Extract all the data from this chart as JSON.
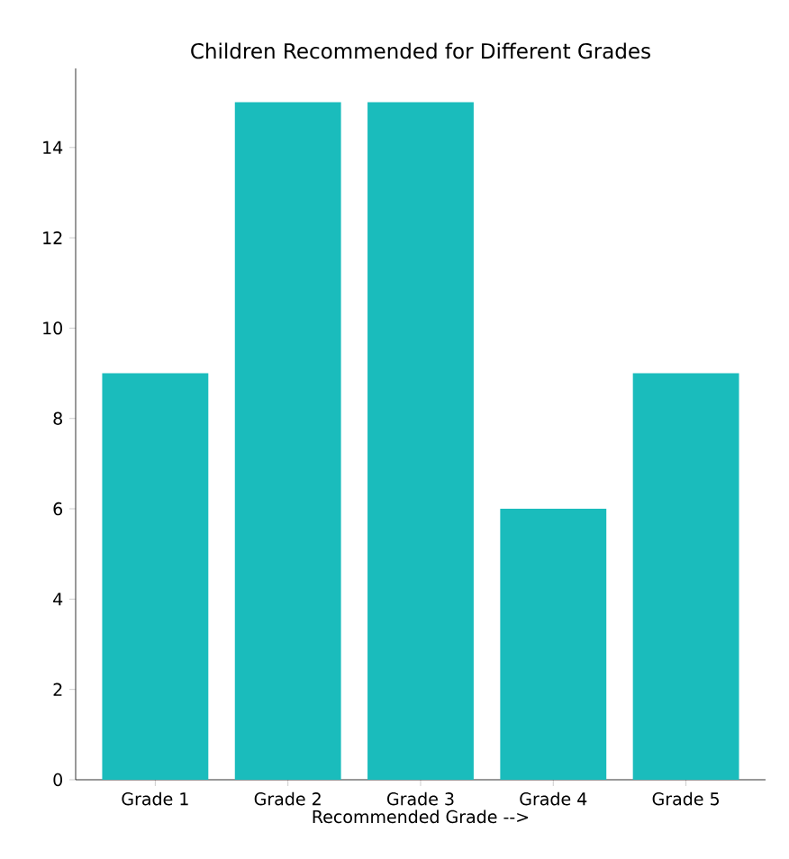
{
  "chart_data": {
    "type": "bar",
    "title": "Children Recommended for Different Grades",
    "xlabel": "Recommended Grade -->",
    "categories": [
      "Grade 1",
      "Grade 2",
      "Grade 3",
      "Grade 4",
      "Grade 5"
    ],
    "values": [
      9,
      15,
      15,
      6,
      9
    ],
    "color": "#1abcbc",
    "ylim": [
      0,
      15.75
    ],
    "yticks": [
      0,
      2,
      4,
      6,
      8,
      10,
      12,
      14
    ]
  }
}
